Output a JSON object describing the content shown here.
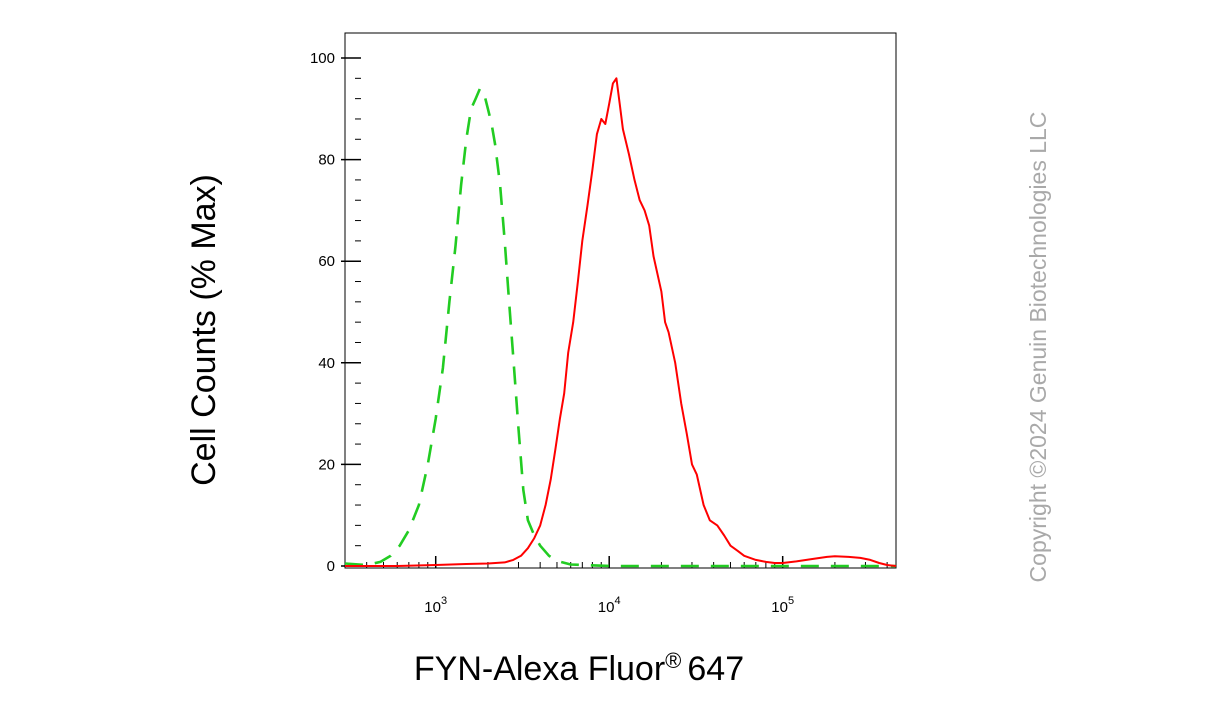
{
  "chart_data": {
    "type": "line",
    "xlabel": "FYN-Alexa Fluor",
    "xlabel_mark": "®",
    "xlabel_suffix": "647",
    "ylabel": "Cell Counts (% Max)",
    "x_scale": "log",
    "xlim": [
      300,
      450000
    ],
    "ylim": [
      0,
      100
    ],
    "y_ticks": [
      0,
      20,
      40,
      60,
      80,
      100
    ],
    "x_ticks": [
      {
        "value": 1000,
        "base": "10",
        "exp": "3"
      },
      {
        "value": 10000,
        "base": "10",
        "exp": "4"
      },
      {
        "value": 100000,
        "base": "10",
        "exp": "5"
      }
    ],
    "grid": false,
    "series": [
      {
        "color": "#22cc22",
        "style": "dashed",
        "points": [
          [
            300,
            0.5
          ],
          [
            400,
            0.2
          ],
          [
            480,
            0.8
          ],
          [
            550,
            2
          ],
          [
            620,
            4
          ],
          [
            700,
            7
          ],
          [
            800,
            12
          ],
          [
            900,
            20
          ],
          [
            1000,
            29
          ],
          [
            1100,
            39
          ],
          [
            1200,
            52
          ],
          [
            1300,
            63
          ],
          [
            1400,
            75
          ],
          [
            1500,
            84
          ],
          [
            1600,
            90
          ],
          [
            1700,
            92
          ],
          [
            1800,
            94
          ],
          [
            1900,
            93
          ],
          [
            2000,
            90
          ],
          [
            2100,
            87
          ],
          [
            2200,
            83
          ],
          [
            2350,
            75
          ],
          [
            2500,
            64
          ],
          [
            2650,
            52
          ],
          [
            2800,
            41
          ],
          [
            3000,
            27
          ],
          [
            3200,
            15
          ],
          [
            3400,
            9
          ],
          [
            3700,
            6
          ],
          [
            4000,
            4
          ],
          [
            4500,
            2
          ],
          [
            5000,
            1
          ],
          [
            6000,
            0.3
          ],
          [
            10000,
            0
          ],
          [
            450000,
            0
          ]
        ]
      },
      {
        "color": "#ff0000",
        "style": "solid",
        "points": [
          [
            300,
            0
          ],
          [
            600,
            0
          ],
          [
            1000,
            0.2
          ],
          [
            1500,
            0.4
          ],
          [
            2000,
            0.5
          ],
          [
            2500,
            0.7
          ],
          [
            2800,
            1.2
          ],
          [
            3100,
            2
          ],
          [
            3400,
            3.5
          ],
          [
            3700,
            5.5
          ],
          [
            4000,
            8
          ],
          [
            4300,
            12
          ],
          [
            4600,
            17
          ],
          [
            4900,
            23
          ],
          [
            5200,
            29
          ],
          [
            5500,
            34
          ],
          [
            5800,
            42
          ],
          [
            6200,
            48
          ],
          [
            6600,
            56
          ],
          [
            7000,
            64
          ],
          [
            7500,
            71
          ],
          [
            8000,
            78
          ],
          [
            8500,
            85
          ],
          [
            9000,
            88
          ],
          [
            9500,
            87
          ],
          [
            10000,
            91
          ],
          [
            10500,
            95
          ],
          [
            11000,
            96
          ],
          [
            11500,
            91
          ],
          [
            12000,
            86
          ],
          [
            13000,
            81
          ],
          [
            14000,
            76
          ],
          [
            15000,
            72
          ],
          [
            16000,
            70
          ],
          [
            17000,
            67
          ],
          [
            18000,
            61
          ],
          [
            20000,
            54
          ],
          [
            21000,
            48
          ],
          [
            22000,
            46
          ],
          [
            24000,
            40
          ],
          [
            26000,
            32
          ],
          [
            28000,
            26
          ],
          [
            30000,
            20
          ],
          [
            32000,
            18
          ],
          [
            35000,
            12
          ],
          [
            38000,
            9
          ],
          [
            42000,
            8
          ],
          [
            46000,
            6
          ],
          [
            50000,
            4
          ],
          [
            55000,
            3
          ],
          [
            60000,
            2
          ],
          [
            70000,
            1.2
          ],
          [
            80000,
            0.8
          ],
          [
            90000,
            0.6
          ],
          [
            100000,
            0.6
          ],
          [
            120000,
            0.9
          ],
          [
            150000,
            1.4
          ],
          [
            180000,
            1.8
          ],
          [
            200000,
            1.9
          ],
          [
            240000,
            1.8
          ],
          [
            280000,
            1.6
          ],
          [
            320000,
            1.2
          ],
          [
            360000,
            0.6
          ],
          [
            400000,
            0.2
          ],
          [
            450000,
            0
          ]
        ]
      }
    ]
  },
  "watermark": "Copyright ©2024 Genuin Biotechnologies LLC"
}
